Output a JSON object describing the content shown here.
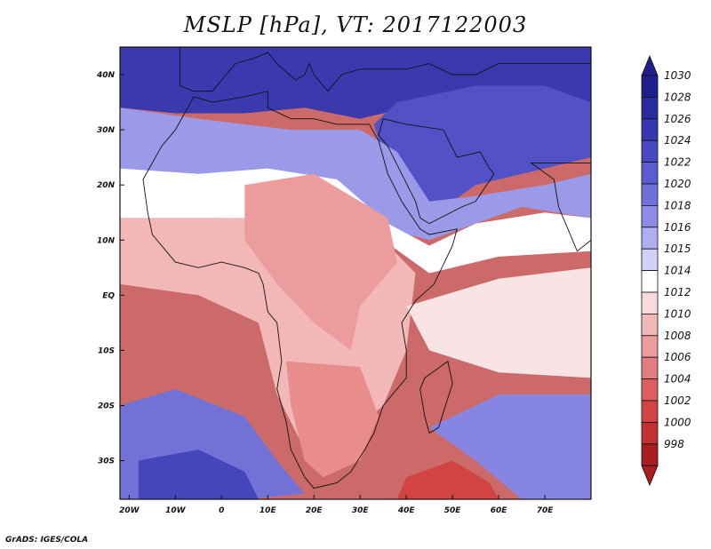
{
  "title": "MSLP [hPa], VT: 2017122003",
  "credit": "GrADS: IGES/COLA",
  "map": {
    "lon_range": [
      -22,
      80
    ],
    "lat_range": [
      -37,
      45
    ],
    "lat_ticks": [
      {
        "lat": 40,
        "label": "40N"
      },
      {
        "lat": 30,
        "label": "30N"
      },
      {
        "lat": 20,
        "label": "20N"
      },
      {
        "lat": 10,
        "label": "10N"
      },
      {
        "lat": 0,
        "label": "EQ"
      },
      {
        "lat": -10,
        "label": "10S"
      },
      {
        "lat": -20,
        "label": "20S"
      },
      {
        "lat": -30,
        "label": "30S"
      }
    ],
    "lon_ticks": [
      {
        "lon": -20,
        "label": "20W"
      },
      {
        "lon": -10,
        "label": "10W"
      },
      {
        "lon": 0,
        "label": "0"
      },
      {
        "lon": 10,
        "label": "10E"
      },
      {
        "lon": 20,
        "label": "20E"
      },
      {
        "lon": 30,
        "label": "30E"
      },
      {
        "lon": 40,
        "label": "40E"
      },
      {
        "lon": 50,
        "label": "50E"
      },
      {
        "lon": 60,
        "label": "60E"
      },
      {
        "lon": 70,
        "label": "70E"
      }
    ]
  },
  "colorbar": {
    "levels": [
      {
        "label": "1030",
        "color": "#1e1e8c"
      },
      {
        "label": "1028",
        "color": "#2a2aa0"
      },
      {
        "label": "1026",
        "color": "#3636b0"
      },
      {
        "label": "1024",
        "color": "#4848c0"
      },
      {
        "label": "1022",
        "color": "#5c5cd0"
      },
      {
        "label": "1020",
        "color": "#7070dc"
      },
      {
        "label": "1018",
        "color": "#8c8ce6"
      },
      {
        "label": "1016",
        "color": "#aeaef0"
      },
      {
        "label": "1015",
        "color": "#d2d2f8"
      },
      {
        "label": "1014",
        "color": "#ffffff"
      },
      {
        "label": "1012",
        "color": "#f8dcdc"
      },
      {
        "label": "1010",
        "color": "#f2b8b8"
      },
      {
        "label": "1008",
        "color": "#ec9c9c"
      },
      {
        "label": "1006",
        "color": "#e47e7e"
      },
      {
        "label": "1004",
        "color": "#dc5e5e"
      },
      {
        "label": "1002",
        "color": "#d24444"
      },
      {
        "label": "1000",
        "color": "#c43030"
      },
      {
        "label": "998",
        "color": "#a81e1e"
      }
    ],
    "top_cap_color": "#1e1e8c",
    "bottom_cap_color": "#a81e1e"
  },
  "pressure_regions": [
    {
      "name": "med-high",
      "color": "#3a3aae",
      "coords": [
        [
          -22,
          45
        ],
        [
          80,
          45
        ],
        [
          80,
          32
        ],
        [
          60,
          38
        ],
        [
          48,
          36
        ],
        [
          40,
          34
        ],
        [
          30,
          32
        ],
        [
          18,
          34
        ],
        [
          5,
          33
        ],
        [
          -10,
          33
        ],
        [
          -22,
          34
        ]
      ]
    },
    {
      "name": "arabia-high",
      "color": "#5252c6",
      "coords": [
        [
          38,
          35
        ],
        [
          55,
          38
        ],
        [
          70,
          38
        ],
        [
          80,
          35
        ],
        [
          80,
          25
        ],
        [
          65,
          22
        ],
        [
          55,
          20
        ],
        [
          45,
          14
        ],
        [
          40,
          18
        ],
        [
          35,
          25
        ],
        [
          33,
          31
        ]
      ]
    },
    {
      "name": "subtropical-belt",
      "color": "#9a9ae8",
      "coords": [
        [
          -22,
          34
        ],
        [
          -5,
          32
        ],
        [
          15,
          30
        ],
        [
          30,
          30
        ],
        [
          38,
          26
        ],
        [
          45,
          17
        ],
        [
          55,
          18
        ],
        [
          70,
          20
        ],
        [
          80,
          22
        ],
        [
          80,
          14
        ],
        [
          65,
          16
        ],
        [
          55,
          13
        ],
        [
          45,
          10
        ],
        [
          36,
          12
        ],
        [
          25,
          20
        ],
        [
          10,
          22
        ],
        [
          -5,
          22
        ],
        [
          -22,
          23
        ]
      ]
    },
    {
      "name": "sahara-transition",
      "color": "#ffffff",
      "coords": [
        [
          -22,
          23
        ],
        [
          -5,
          22
        ],
        [
          10,
          23
        ],
        [
          25,
          21
        ],
        [
          36,
          13
        ],
        [
          45,
          9
        ],
        [
          55,
          13
        ],
        [
          70,
          15
        ],
        [
          80,
          14
        ],
        [
          80,
          8
        ],
        [
          60,
          7
        ],
        [
          45,
          4
        ],
        [
          35,
          10
        ],
        [
          20,
          13
        ],
        [
          0,
          14
        ],
        [
          -22,
          14
        ]
      ]
    },
    {
      "name": "africa-low",
      "color": "#f2b8b8",
      "coords": [
        [
          -22,
          14
        ],
        [
          0,
          14
        ],
        [
          20,
          14
        ],
        [
          35,
          10
        ],
        [
          42,
          4
        ],
        [
          40,
          -10
        ],
        [
          35,
          -20
        ],
        [
          25,
          -27
        ],
        [
          18,
          -28
        ],
        [
          12,
          -18
        ],
        [
          8,
          -5
        ],
        [
          -5,
          0
        ],
        [
          -22,
          2
        ]
      ]
    },
    {
      "name": "central-africa-low",
      "color": "#ec9c9c",
      "coords": [
        [
          5,
          20
        ],
        [
          20,
          22
        ],
        [
          36,
          14
        ],
        [
          38,
          6
        ],
        [
          30,
          -2
        ],
        [
          28,
          -10
        ],
        [
          20,
          -5
        ],
        [
          12,
          2
        ],
        [
          5,
          10
        ]
      ]
    },
    {
      "name": "southern-trough",
      "color": "#e88c8c",
      "coords": [
        [
          14,
          -12
        ],
        [
          30,
          -13
        ],
        [
          34,
          -22
        ],
        [
          30,
          -30
        ],
        [
          22,
          -33
        ],
        [
          18,
          -30
        ],
        [
          15,
          -20
        ]
      ]
    },
    {
      "name": "south-atlantic-high",
      "color": "#7272d6",
      "coords": [
        [
          -22,
          -20
        ],
        [
          -10,
          -17
        ],
        [
          5,
          -22
        ],
        [
          12,
          -30
        ],
        [
          18,
          -36
        ],
        [
          5,
          -37
        ],
        [
          -22,
          -37
        ]
      ]
    },
    {
      "name": "south-atlantic-core",
      "color": "#4646bc",
      "coords": [
        [
          -18,
          -30
        ],
        [
          -5,
          -28
        ],
        [
          5,
          -32
        ],
        [
          8,
          -37
        ],
        [
          -18,
          -37
        ]
      ]
    },
    {
      "name": "indian-high",
      "color": "#8686e2",
      "coords": [
        [
          45,
          -24
        ],
        [
          60,
          -18
        ],
        [
          80,
          -18
        ],
        [
          80,
          -37
        ],
        [
          65,
          -37
        ],
        [
          55,
          -30
        ]
      ]
    },
    {
      "name": "south-low",
      "color": "#d24444",
      "coords": [
        [
          40,
          -33
        ],
        [
          50,
          -30
        ],
        [
          58,
          -34
        ],
        [
          60,
          -37
        ],
        [
          38,
          -37
        ]
      ]
    },
    {
      "name": "indian-ocean-neutral",
      "color": "#f8e4e4",
      "coords": [
        [
          40,
          -2
        ],
        [
          60,
          3
        ],
        [
          80,
          5
        ],
        [
          80,
          -15
        ],
        [
          60,
          -14
        ],
        [
          45,
          -10
        ]
      ]
    }
  ],
  "coastlines": [
    {
      "name": "africa",
      "coords": [
        [
          -17,
          21
        ],
        [
          -16,
          15
        ],
        [
          -15,
          11
        ],
        [
          -10,
          6
        ],
        [
          -5,
          5
        ],
        [
          0,
          6
        ],
        [
          5,
          5
        ],
        [
          8,
          4
        ],
        [
          9,
          2
        ],
        [
          10,
          -3
        ],
        [
          12,
          -5
        ],
        [
          13,
          -12
        ],
        [
          12,
          -17
        ],
        [
          14,
          -23
        ],
        [
          15,
          -28
        ],
        [
          18,
          -33
        ],
        [
          20,
          -35
        ],
        [
          25,
          -34
        ],
        [
          28,
          -32
        ],
        [
          31,
          -28
        ],
        [
          33,
          -25
        ],
        [
          35,
          -20
        ],
        [
          40,
          -15
        ],
        [
          40,
          -10
        ],
        [
          39,
          -5
        ],
        [
          42,
          -1
        ],
        [
          46,
          2
        ],
        [
          50,
          9
        ],
        [
          51,
          12
        ],
        [
          45,
          11
        ],
        [
          43,
          12
        ],
        [
          39,
          17
        ],
        [
          36,
          22
        ],
        [
          34,
          28
        ],
        [
          32,
          31
        ],
        [
          25,
          31
        ],
        [
          20,
          32
        ],
        [
          15,
          32
        ],
        [
          10,
          34
        ],
        [
          10,
          37
        ],
        [
          5,
          36
        ],
        [
          -2,
          35
        ],
        [
          -6,
          36
        ],
        [
          -10,
          30
        ],
        [
          -13,
          27
        ],
        [
          -17,
          21
        ]
      ]
    },
    {
      "name": "madagascar",
      "coords": [
        [
          44,
          -15
        ],
        [
          49,
          -12
        ],
        [
          50,
          -16
        ],
        [
          47,
          -24
        ],
        [
          45,
          -25
        ],
        [
          44,
          -22
        ],
        [
          43,
          -17
        ]
      ]
    },
    {
      "name": "arabia",
      "coords": [
        [
          34,
          29
        ],
        [
          35,
          32
        ],
        [
          40,
          31
        ],
        [
          48,
          30
        ],
        [
          51,
          25
        ],
        [
          56,
          26
        ],
        [
          58,
          23
        ],
        [
          59,
          22
        ],
        [
          55,
          17
        ],
        [
          52,
          16
        ],
        [
          45,
          13
        ],
        [
          43,
          14
        ],
        [
          42,
          17
        ],
        [
          39,
          22
        ],
        [
          36,
          27
        ]
      ]
    },
    {
      "name": "india",
      "coords": [
        [
          67,
          24
        ],
        [
          72,
          21
        ],
        [
          73,
          16
        ],
        [
          77,
          8
        ],
        [
          80,
          10
        ],
        [
          80,
          24
        ]
      ]
    },
    {
      "name": "iberia-europe",
      "coords": [
        [
          -9,
          43
        ],
        [
          -9,
          38
        ],
        [
          -6,
          37
        ],
        [
          -2,
          37
        ],
        [
          0,
          39
        ],
        [
          3,
          42
        ],
        [
          7,
          43
        ],
        [
          10,
          44
        ],
        [
          12,
          42
        ],
        [
          16,
          39
        ],
        [
          18,
          40
        ],
        [
          19,
          42
        ],
        [
          20,
          40
        ],
        [
          23,
          37
        ],
        [
          26,
          40
        ],
        [
          30,
          41
        ],
        [
          36,
          41
        ],
        [
          40,
          41
        ],
        [
          45,
          42
        ],
        [
          50,
          40
        ],
        [
          55,
          40
        ],
        [
          60,
          42
        ],
        [
          70,
          42
        ],
        [
          80,
          42
        ],
        [
          80,
          45
        ],
        [
          -9,
          45
        ]
      ]
    }
  ]
}
